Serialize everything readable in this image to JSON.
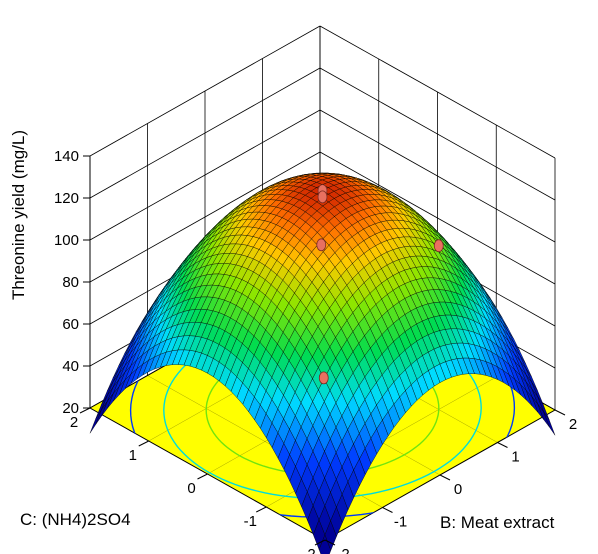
{
  "chart_data": {
    "type": "surface3d",
    "zlabel": "Threonine yield (mg/L)",
    "xlabel": "B: Meat extract",
    "ylabel": "C: (NH4)2SO4",
    "xlim": [
      -2,
      2
    ],
    "ylim": [
      -2,
      2
    ],
    "zlim": [
      20,
      140
    ],
    "x_ticks": [
      "-2",
      "-1",
      "0",
      "1",
      "2"
    ],
    "y_ticks": [
      "-2",
      "-1",
      "0",
      "1",
      "2"
    ],
    "z_ticks": [
      "20",
      "40",
      "60",
      "80",
      "100",
      "120",
      "140"
    ],
    "model": {
      "form": "quadratic",
      "intercept": 124,
      "b_linear": 0,
      "c_linear": 0,
      "b_squared": -14,
      "c_squared": -15,
      "bc_interaction": 0
    },
    "design_points": [
      {
        "b": 0,
        "c": 0,
        "yield": 124
      },
      {
        "b": 0,
        "c": 0,
        "yield": 121
      },
      {
        "b": 1,
        "c": -1,
        "yield": 98
      },
      {
        "b": 1,
        "c": 1,
        "yield": 67
      },
      {
        "b": -1,
        "c": -1,
        "yield": 66
      }
    ],
    "contour_levels": [
      120,
      95,
      70,
      45
    ],
    "colors": {
      "contour_floor": "#ffff00",
      "point": "#e87060",
      "grid_line": "#000000"
    },
    "grid": true
  }
}
